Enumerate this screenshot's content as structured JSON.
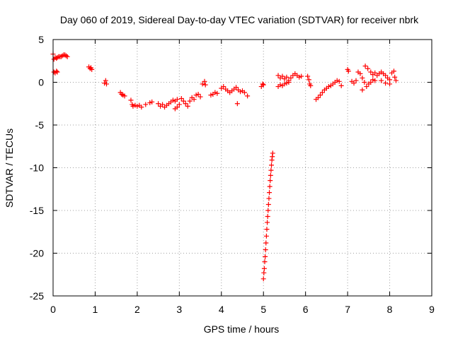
{
  "chart_data": {
    "type": "scatter",
    "title": "Day 060 of 2019, Sidereal Day-to-day VTEC variation (SDTVAR) for receiver nbrk",
    "xlabel": "GPS time / hours",
    "ylabel": "SDTVAR / TECUs",
    "xlim": [
      0,
      9
    ],
    "ylim": [
      -25,
      5
    ],
    "xticks": [
      0,
      1,
      2,
      3,
      4,
      5,
      6,
      7,
      8,
      9
    ],
    "yticks": [
      5,
      0,
      -5,
      -10,
      -15,
      -20,
      -25
    ],
    "grid": true,
    "marker": "+",
    "series": [
      {
        "name": "SDTVAR",
        "color": "#ff0000",
        "points": [
          [
            0.0,
            3.3
          ],
          [
            0.02,
            2.7
          ],
          [
            0.05,
            2.9
          ],
          [
            0.08,
            2.8
          ],
          [
            0.1,
            2.9
          ],
          [
            0.13,
            3.0
          ],
          [
            0.16,
            3.0
          ],
          [
            0.19,
            3.0
          ],
          [
            0.22,
            3.1
          ],
          [
            0.25,
            3.2
          ],
          [
            0.28,
            3.2
          ],
          [
            0.31,
            3.1
          ],
          [
            0.34,
            3.0
          ],
          [
            0.02,
            1.2
          ],
          [
            0.05,
            1.1
          ],
          [
            0.08,
            1.3
          ],
          [
            0.1,
            1.2
          ],
          [
            0.85,
            1.8
          ],
          [
            0.88,
            1.6
          ],
          [
            0.9,
            1.7
          ],
          [
            0.92,
            1.5
          ],
          [
            1.22,
            -0.1
          ],
          [
            1.25,
            0.2
          ],
          [
            1.27,
            -0.2
          ],
          [
            1.6,
            -1.2
          ],
          [
            1.63,
            -1.4
          ],
          [
            1.66,
            -1.5
          ],
          [
            1.7,
            -1.6
          ],
          [
            1.85,
            -2.1
          ],
          [
            1.88,
            -2.6
          ],
          [
            1.9,
            -2.8
          ],
          [
            1.95,
            -2.7
          ],
          [
            2.0,
            -2.8
          ],
          [
            2.05,
            -2.7
          ],
          [
            2.1,
            -2.9
          ],
          [
            2.2,
            -2.6
          ],
          [
            2.3,
            -2.4
          ],
          [
            2.35,
            -2.3
          ],
          [
            2.5,
            -2.5
          ],
          [
            2.55,
            -2.8
          ],
          [
            2.6,
            -2.6
          ],
          [
            2.65,
            -2.9
          ],
          [
            2.7,
            -2.7
          ],
          [
            2.75,
            -2.5
          ],
          [
            2.8,
            -2.3
          ],
          [
            2.85,
            -2.1
          ],
          [
            2.9,
            -2.2
          ],
          [
            2.95,
            -2.0
          ],
          [
            2.9,
            -3.1
          ],
          [
            2.95,
            -2.9
          ],
          [
            3.0,
            -2.6
          ],
          [
            3.05,
            -1.9
          ],
          [
            3.1,
            -2.2
          ],
          [
            3.15,
            -2.5
          ],
          [
            3.2,
            -2.8
          ],
          [
            3.25,
            -2.2
          ],
          [
            3.3,
            -1.8
          ],
          [
            3.35,
            -2.0
          ],
          [
            3.4,
            -1.5
          ],
          [
            3.45,
            -1.4
          ],
          [
            3.5,
            -1.7
          ],
          [
            3.55,
            -0.2
          ],
          [
            3.6,
            0.1
          ],
          [
            3.62,
            -0.3
          ],
          [
            3.75,
            -1.5
          ],
          [
            3.8,
            -1.4
          ],
          [
            3.85,
            -1.2
          ],
          [
            3.9,
            -1.3
          ],
          [
            4.0,
            -0.7
          ],
          [
            4.05,
            -0.5
          ],
          [
            4.1,
            -0.8
          ],
          [
            4.15,
            -1.0
          ],
          [
            4.2,
            -1.2
          ],
          [
            4.25,
            -1.0
          ],
          [
            4.3,
            -0.8
          ],
          [
            4.35,
            -0.6
          ],
          [
            4.4,
            -0.9
          ],
          [
            4.45,
            -1.1
          ],
          [
            4.5,
            -1.0
          ],
          [
            4.55,
            -1.2
          ],
          [
            4.62,
            -1.6
          ],
          [
            4.38,
            -2.5
          ],
          [
            4.95,
            -0.5
          ],
          [
            4.98,
            -0.2
          ],
          [
            5.0,
            -0.3
          ],
          [
            5.0,
            -23.0
          ],
          [
            5.01,
            -22.3
          ],
          [
            5.02,
            -21.8
          ],
          [
            5.03,
            -21.0
          ],
          [
            5.04,
            -20.4
          ],
          [
            5.05,
            -19.6
          ],
          [
            5.06,
            -18.8
          ],
          [
            5.07,
            -18.0
          ],
          [
            5.08,
            -17.2
          ],
          [
            5.09,
            -16.4
          ],
          [
            5.1,
            -15.7
          ],
          [
            5.11,
            -15.0
          ],
          [
            5.12,
            -14.3
          ],
          [
            5.13,
            -13.6
          ],
          [
            5.14,
            -12.9
          ],
          [
            5.15,
            -12.2
          ],
          [
            5.16,
            -11.5
          ],
          [
            5.17,
            -10.9
          ],
          [
            5.18,
            -10.3
          ],
          [
            5.19,
            -9.7
          ],
          [
            5.2,
            -9.1
          ],
          [
            5.21,
            -8.7
          ],
          [
            5.22,
            -8.3
          ],
          [
            5.35,
            0.8
          ],
          [
            5.4,
            0.5
          ],
          [
            5.45,
            0.7
          ],
          [
            5.5,
            0.4
          ],
          [
            5.55,
            0.6
          ],
          [
            5.6,
            0.2
          ],
          [
            5.65,
            0.5
          ],
          [
            5.7,
            0.8
          ],
          [
            5.75,
            1.0
          ],
          [
            5.8,
            0.8
          ],
          [
            5.85,
            0.6
          ],
          [
            5.9,
            0.7
          ],
          [
            5.35,
            -0.5
          ],
          [
            5.4,
            -0.3
          ],
          [
            5.45,
            -0.4
          ],
          [
            5.5,
            -0.2
          ],
          [
            5.55,
            -0.1
          ],
          [
            5.6,
            0.0
          ],
          [
            6.05,
            0.7
          ],
          [
            6.08,
            0.3
          ],
          [
            6.1,
            -0.2
          ],
          [
            6.12,
            -0.4
          ],
          [
            6.25,
            -2.0
          ],
          [
            6.3,
            -1.8
          ],
          [
            6.35,
            -1.5
          ],
          [
            6.4,
            -1.2
          ],
          [
            6.45,
            -0.9
          ],
          [
            6.5,
            -0.7
          ],
          [
            6.55,
            -0.5
          ],
          [
            6.6,
            -0.4
          ],
          [
            6.65,
            -0.2
          ],
          [
            6.7,
            0.0
          ],
          [
            6.75,
            0.2
          ],
          [
            6.8,
            0.1
          ],
          [
            6.85,
            -0.4
          ],
          [
            7.0,
            1.5
          ],
          [
            7.02,
            1.3
          ],
          [
            7.1,
            0.1
          ],
          [
            7.15,
            -0.1
          ],
          [
            7.2,
            0.2
          ],
          [
            7.25,
            1.2
          ],
          [
            7.3,
            1.0
          ],
          [
            7.35,
            0.5
          ],
          [
            7.4,
            0.0
          ],
          [
            7.45,
            -0.5
          ],
          [
            7.5,
            -0.2
          ],
          [
            7.55,
            0.0
          ],
          [
            7.6,
            0.3
          ],
          [
            7.65,
            0.2
          ],
          [
            7.42,
            1.9
          ],
          [
            7.48,
            1.6
          ],
          [
            7.55,
            1.2
          ],
          [
            7.6,
            0.9
          ],
          [
            7.65,
            1.1
          ],
          [
            7.7,
            0.8
          ],
          [
            7.75,
            1.0
          ],
          [
            7.8,
            1.2
          ],
          [
            7.85,
            1.0
          ],
          [
            7.9,
            0.8
          ],
          [
            7.95,
            0.5
          ],
          [
            8.0,
            0.3
          ],
          [
            8.05,
            1.1
          ],
          [
            8.1,
            1.3
          ],
          [
            8.12,
            0.6
          ],
          [
            8.15,
            0.2
          ],
          [
            7.35,
            -0.9
          ],
          [
            7.8,
            0.2
          ],
          [
            7.9,
            -0.1
          ],
          [
            8.0,
            -0.2
          ]
        ]
      }
    ]
  }
}
